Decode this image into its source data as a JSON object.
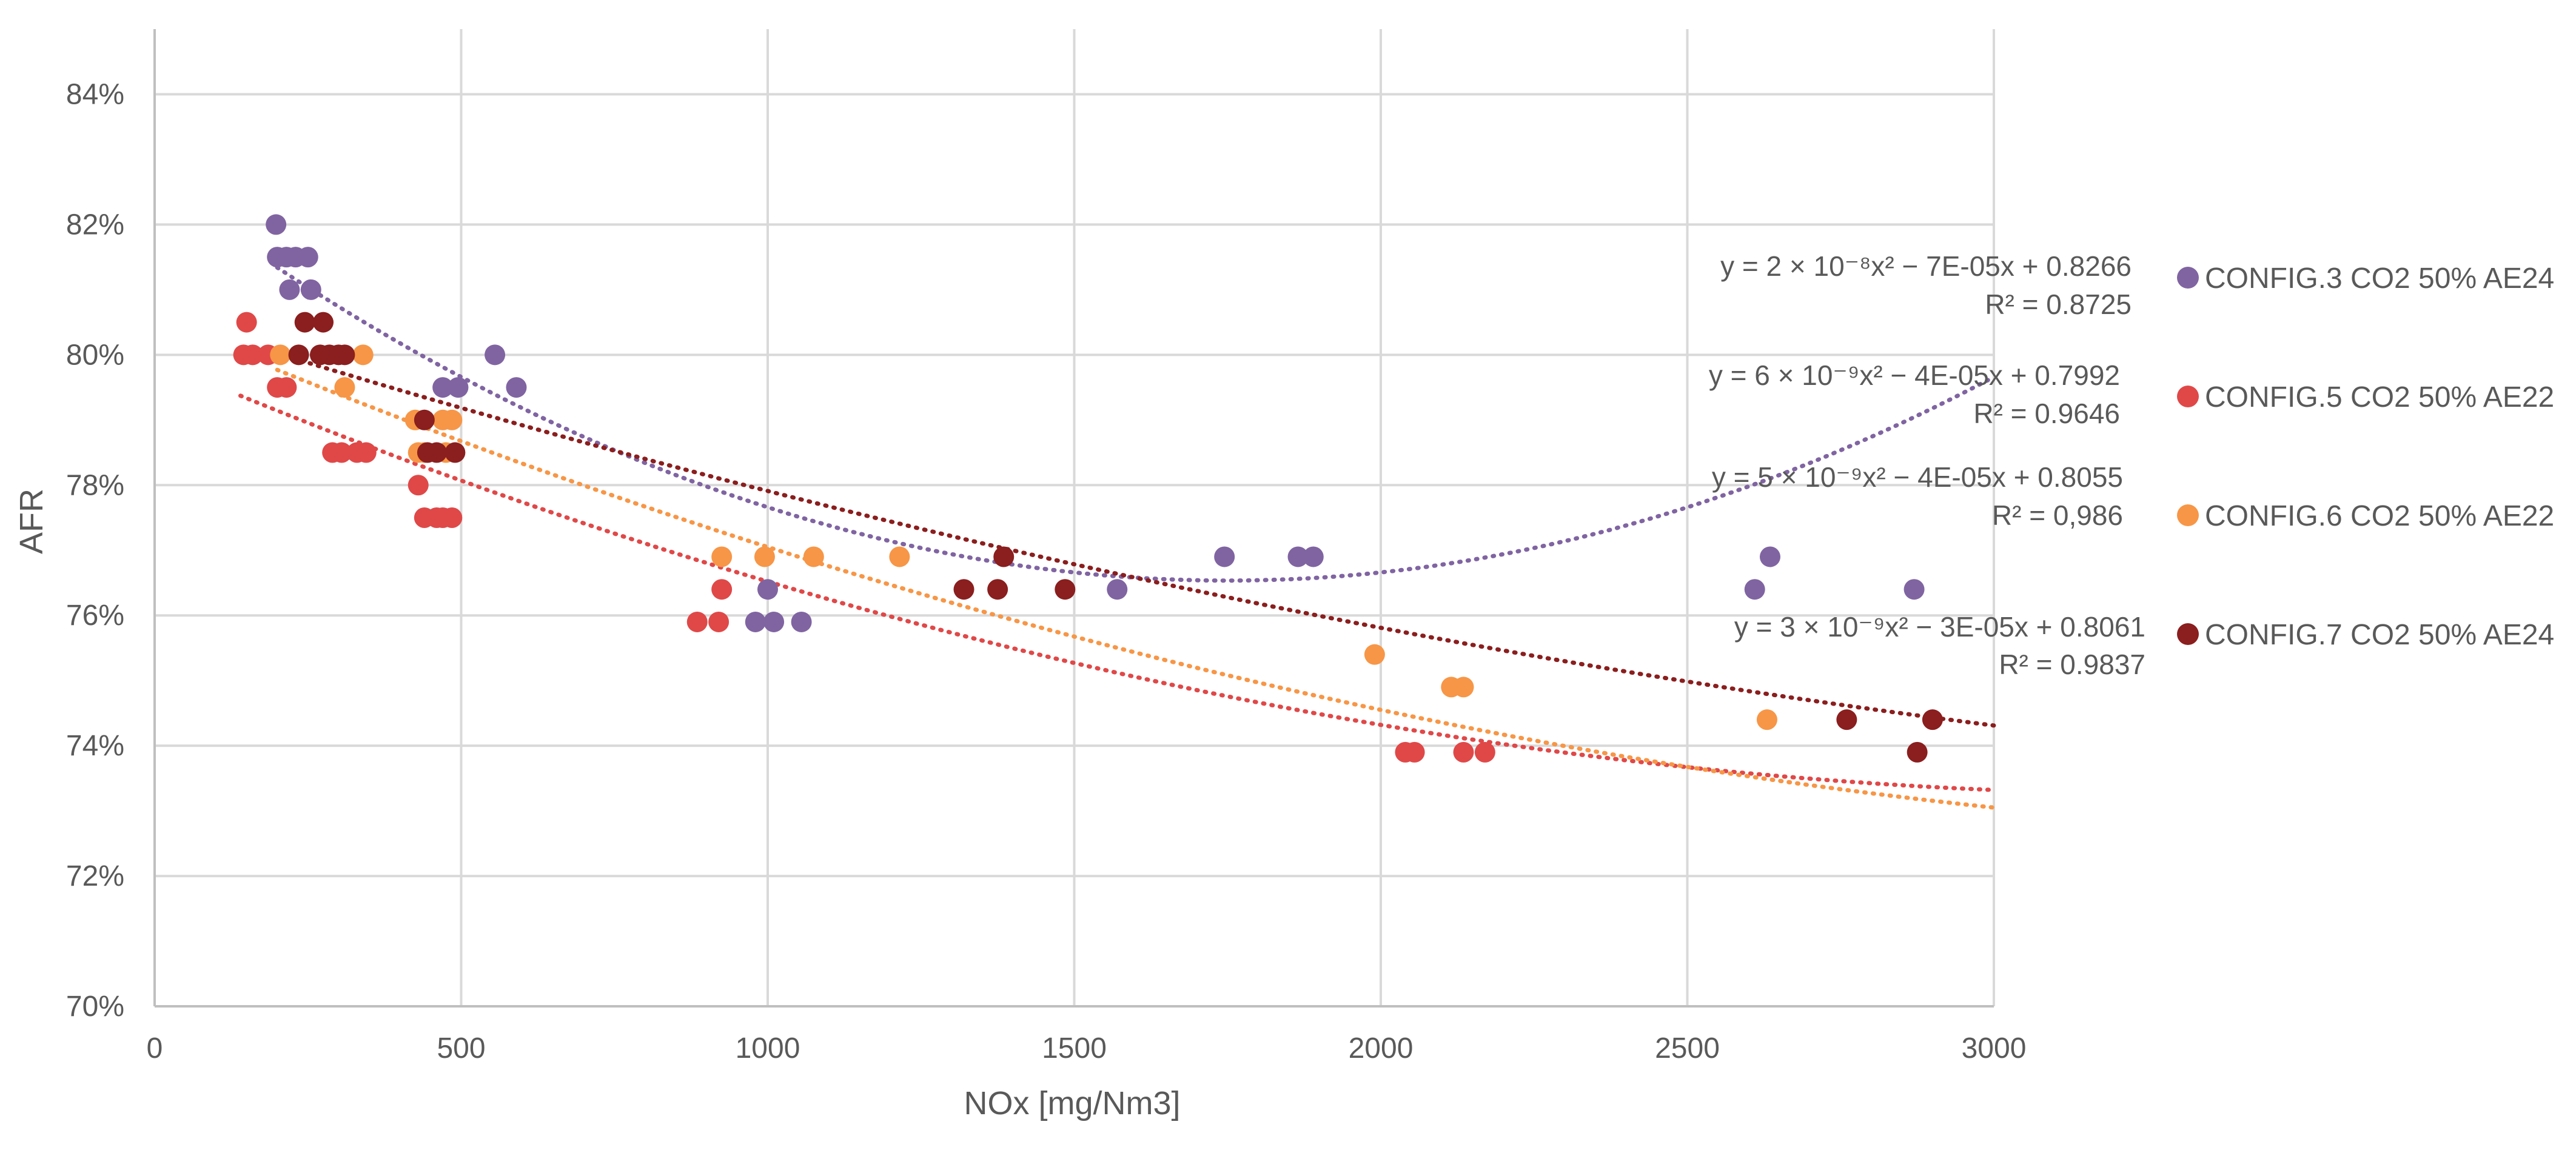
{
  "chart_data": {
    "type": "scatter",
    "title": "",
    "xlabel": "NOx [mg/Nm3]",
    "ylabel": "AFR",
    "xlim": [
      0,
      3000
    ],
    "ylim": [
      0.7,
      0.85
    ],
    "x_ticks": [
      0,
      500,
      1000,
      1500,
      2000,
      2500,
      3000
    ],
    "x_tick_labels": [
      "0",
      "500",
      "1000",
      "1500",
      "2000",
      "2500",
      "3000"
    ],
    "y_ticks": [
      0.7,
      0.72,
      0.74,
      0.76,
      0.78,
      0.8,
      0.82,
      0.84
    ],
    "y_tick_labels": [
      "70%",
      "72%",
      "74%",
      "76%",
      "78%",
      "80%",
      "82%",
      "84%"
    ],
    "grid": "vertical",
    "legend_position": "right",
    "series": [
      {
        "name": "CONFIG.3 CO2 50% AE24",
        "color": "#8064A2",
        "points": [
          [
            198,
            0.82
          ],
          [
            200,
            0.815
          ],
          [
            215,
            0.815
          ],
          [
            230,
            0.815
          ],
          [
            250,
            0.815
          ],
          [
            220,
            0.81
          ],
          [
            255,
            0.81
          ],
          [
            555,
            0.8
          ],
          [
            470,
            0.795
          ],
          [
            495,
            0.795
          ],
          [
            590,
            0.795
          ],
          [
            1000,
            0.764
          ],
          [
            980,
            0.759
          ],
          [
            1010,
            0.759
          ],
          [
            1055,
            0.759
          ],
          [
            1570,
            0.764
          ],
          [
            1745,
            0.769
          ],
          [
            1865,
            0.769
          ],
          [
            1890,
            0.769
          ],
          [
            2610,
            0.764
          ],
          [
            2635,
            0.769
          ],
          [
            2870,
            0.764
          ]
        ],
        "trend": {
          "a": 2e-08,
          "b": -7e-05,
          "c": 0.8266,
          "x_range": [
            200,
            3000
          ]
        },
        "equation": "y = 2 × 10⁻⁸x² − 7E-05x + 0.8266",
        "r2": "R² = 0.8725"
      },
      {
        "name": "CONFIG.5 CO2 50% AE22",
        "color": "#E04848",
        "points": [
          [
            150,
            0.805
          ],
          [
            145,
            0.8
          ],
          [
            160,
            0.8
          ],
          [
            185,
            0.8
          ],
          [
            200,
            0.795
          ],
          [
            215,
            0.795
          ],
          [
            290,
            0.785
          ],
          [
            305,
            0.785
          ],
          [
            330,
            0.785
          ],
          [
            345,
            0.785
          ],
          [
            430,
            0.78
          ],
          [
            440,
            0.775
          ],
          [
            460,
            0.775
          ],
          [
            470,
            0.775
          ],
          [
            485,
            0.775
          ],
          [
            885,
            0.759
          ],
          [
            920,
            0.759
          ],
          [
            925,
            0.764
          ],
          [
            2040,
            0.739
          ],
          [
            2055,
            0.739
          ],
          [
            2135,
            0.739
          ],
          [
            2170,
            0.739
          ]
        ],
        "trend": {
          "a": 6e-09,
          "b": -4e-05,
          "c": 0.7992,
          "x_range": [
            140,
            3000
          ]
        },
        "equation": "y = 6 × 10⁻⁹x² − 4E-05x + 0.7992",
        "r2": "R² = 0.9646"
      },
      {
        "name": "CONFIG.6 CO2 50% AE22",
        "color": "#F79646",
        "points": [
          [
            205,
            0.8
          ],
          [
            340,
            0.8
          ],
          [
            310,
            0.795
          ],
          [
            425,
            0.79
          ],
          [
            430,
            0.785
          ],
          [
            470,
            0.79
          ],
          [
            485,
            0.79
          ],
          [
            440,
            0.785
          ],
          [
            475,
            0.785
          ],
          [
            925,
            0.769
          ],
          [
            995,
            0.769
          ],
          [
            1075,
            0.769
          ],
          [
            1215,
            0.769
          ],
          [
            1990,
            0.754
          ],
          [
            2115,
            0.749
          ],
          [
            2135,
            0.749
          ],
          [
            2630,
            0.744
          ]
        ],
        "trend": {
          "a": 5e-09,
          "b": -4e-05,
          "c": 0.8055,
          "x_range": [
            200,
            3000
          ]
        },
        "equation": "y = 5 × 10⁻⁹x² − 4E-05x + 0.8055",
        "r2": "R² = 0,986"
      },
      {
        "name": "CONFIG.7 CO2 50% AE24",
        "color": "#8B1E1E",
        "points": [
          [
            245,
            0.805
          ],
          [
            275,
            0.805
          ],
          [
            235,
            0.8
          ],
          [
            270,
            0.8
          ],
          [
            285,
            0.8
          ],
          [
            300,
            0.8
          ],
          [
            310,
            0.8
          ],
          [
            440,
            0.79
          ],
          [
            445,
            0.785
          ],
          [
            460,
            0.785
          ],
          [
            490,
            0.785
          ],
          [
            1385,
            0.769
          ],
          [
            1320,
            0.764
          ],
          [
            1375,
            0.764
          ],
          [
            1485,
            0.764
          ],
          [
            2760,
            0.744
          ],
          [
            2900,
            0.744
          ],
          [
            2875,
            0.739
          ]
        ],
        "trend": {
          "a": 3e-09,
          "b": -3e-05,
          "c": 0.8061,
          "x_range": [
            200,
            3000
          ]
        },
        "equation": "y = 3 × 10⁻⁹x² − 3E-05x + 0.8061",
        "r2": "R² = 0.9837"
      }
    ]
  }
}
